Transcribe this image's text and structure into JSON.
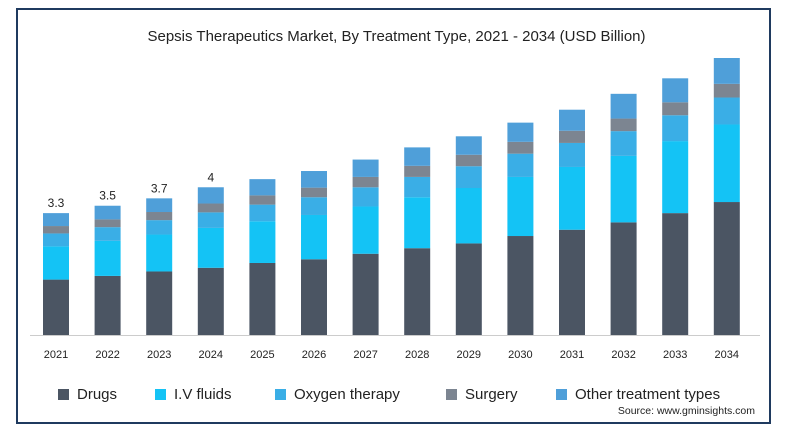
{
  "chart_data": {
    "type": "bar",
    "stacked": true,
    "title": "Sepsis Therapeutics Market, By Treatment Type, 2021 - 2034 (USD Billion)",
    "categories": [
      "2021",
      "2022",
      "2023",
      "2024",
      "2025",
      "2026",
      "2027",
      "2028",
      "2029",
      "2030",
      "2031",
      "2032",
      "2033",
      "2034"
    ],
    "series": [
      {
        "name": "Drugs",
        "color": "#4b5563",
        "values": [
          1.5,
          1.6,
          1.72,
          1.82,
          1.95,
          2.05,
          2.2,
          2.35,
          2.48,
          2.68,
          2.85,
          3.05,
          3.3,
          3.6
        ]
      },
      {
        "name": "I.V fluids",
        "color": "#14c3f5",
        "values": [
          0.9,
          0.95,
          1.0,
          1.08,
          1.13,
          1.2,
          1.28,
          1.38,
          1.5,
          1.6,
          1.7,
          1.8,
          1.95,
          2.1
        ]
      },
      {
        "name": "Oxygen therapy",
        "color": "#3aaee6",
        "values": [
          0.35,
          0.37,
          0.39,
          0.42,
          0.45,
          0.48,
          0.52,
          0.55,
          0.59,
          0.63,
          0.65,
          0.67,
          0.7,
          0.73
        ]
      },
      {
        "name": "Surgery",
        "color": "#7c8591",
        "values": [
          0.2,
          0.21,
          0.22,
          0.24,
          0.25,
          0.26,
          0.28,
          0.3,
          0.31,
          0.32,
          0.33,
          0.34,
          0.35,
          0.37
        ]
      },
      {
        "name": "Other treatment types",
        "color": "#4f9fd9",
        "values": [
          0.35,
          0.37,
          0.37,
          0.44,
          0.44,
          0.45,
          0.47,
          0.5,
          0.5,
          0.52,
          0.57,
          0.67,
          0.65,
          0.7
        ]
      }
    ],
    "data_labels": [
      "3.3",
      "3.5",
      "3.7",
      "4",
      "",
      "",
      "",
      "",
      "",
      "",
      "",
      "",
      "",
      ""
    ],
    "ylim": [
      0,
      7.5
    ],
    "grid": false,
    "legend": "bottom"
  },
  "source": "Source: www.gminsights.com"
}
